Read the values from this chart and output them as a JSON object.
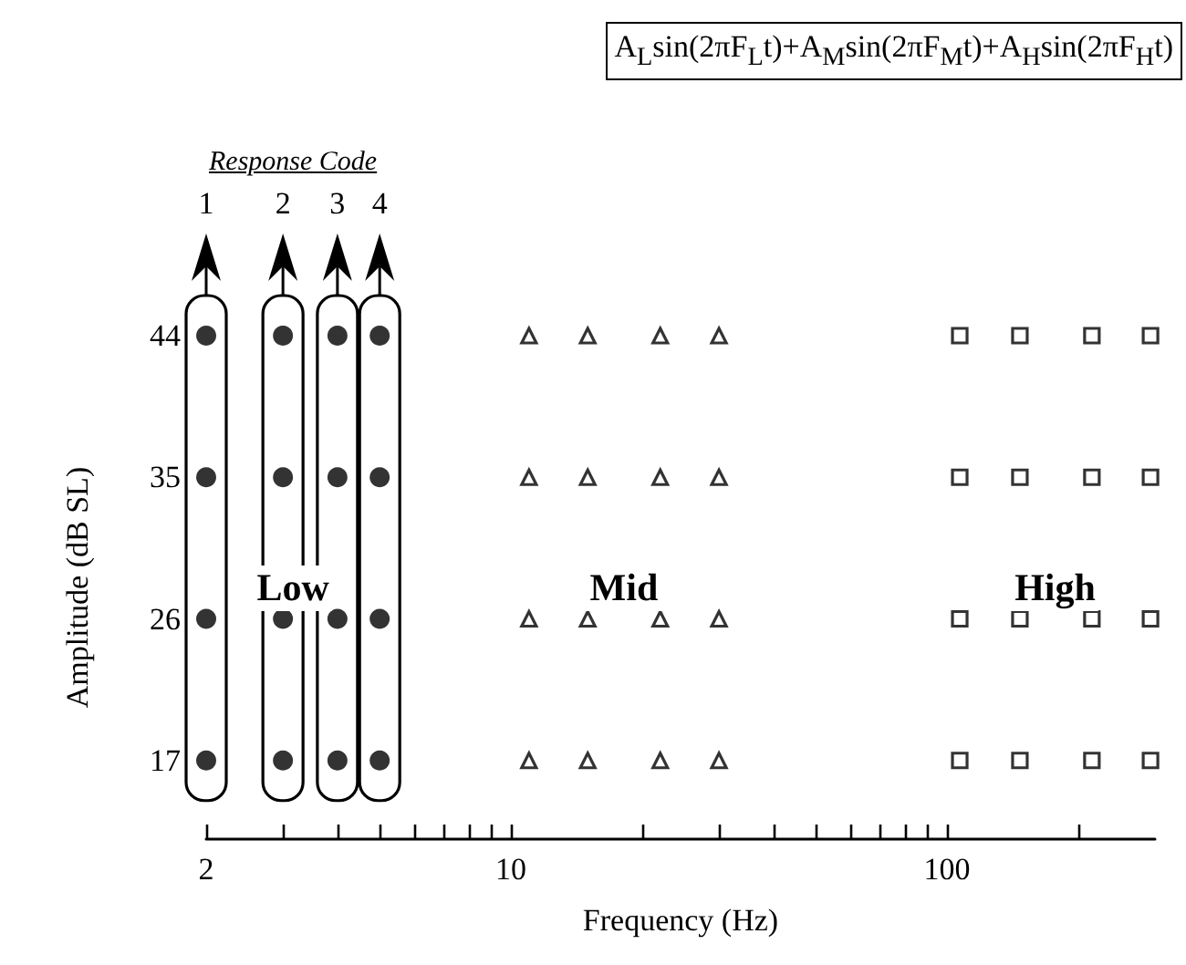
{
  "chart_data": {
    "type": "scatter",
    "title": "A$_{L}$sin(2πF$_{L}$t)+A$_{M}$sin(2πF$_{M}$t)+A$_{H}$sin(2πF$_{H}$t)",
    "xlabel": "Frequency (Hz)",
    "ylabel": "Amplitude (dB SL)",
    "log": "x",
    "xlim": [
      2,
      300
    ],
    "xticks": [
      2,
      {
        "value": 3,
        "label": null
      },
      {
        "value": 4,
        "label": null
      },
      {
        "value": 5,
        "label": null
      },
      {
        "value": 6,
        "label": null
      },
      {
        "value": 7,
        "label": null
      },
      {
        "value": 8,
        "label": null
      },
      {
        "value": 9,
        "label": null
      },
      10,
      {
        "value": 20,
        "label": null
      },
      {
        "value": 30,
        "label": null
      },
      {
        "value": 40,
        "label": null
      },
      {
        "value": 50,
        "label": null
      },
      {
        "value": 60,
        "label": null
      },
      {
        "value": 70,
        "label": null
      },
      {
        "value": 80,
        "label": null
      },
      {
        "value": 90,
        "label": null
      },
      100,
      {
        "value": 200,
        "label": null
      }
    ],
    "ylim": [
      12,
      44
    ],
    "yticks": [
      17,
      26,
      35,
      44
    ],
    "grid": false,
    "series": [
      {
        "marker": "circle",
        "color": "#000000",
        "x": [
          2,
          2,
          2,
          2,
          3,
          3,
          3,
          3,
          4,
          4,
          4,
          4,
          5,
          5,
          5,
          5
        ],
        "values": [
          44,
          35,
          26,
          17,
          44,
          35,
          26,
          17,
          44,
          35,
          26,
          17,
          44,
          35,
          26,
          17
        ]
      },
      {
        "marker": "triangle",
        "color": "#000000",
        "x": [
          11,
          11,
          11,
          11,
          15,
          15,
          15,
          15,
          22,
          22,
          22,
          22,
          30,
          30,
          30,
          30
        ],
        "values": [
          44,
          35,
          26,
          17,
          44,
          35,
          26,
          17,
          44,
          35,
          26,
          17,
          44,
          35,
          26,
          17
        ]
      },
      {
        "marker": "square",
        "color": "#000000",
        "x": [
          107,
          107,
          107,
          107,
          147,
          147,
          147,
          147,
          215,
          215,
          215,
          215,
          293,
          293,
          293,
          293
        ],
        "values": [
          44,
          35,
          26,
          17,
          44,
          35,
          26,
          17,
          44,
          35,
          26,
          17,
          44,
          35,
          26,
          17
        ]
      }
    ],
    "annotations": [
      "Response Code",
      {
        "text": "1",
        "x": 2
      },
      {
        "text": "2",
        "x": 3
      },
      {
        "text": "3",
        "x": 4
      },
      {
        "text": "4",
        "x": 5
      },
      "Low",
      "Mid",
      "High"
    ]
  }
}
